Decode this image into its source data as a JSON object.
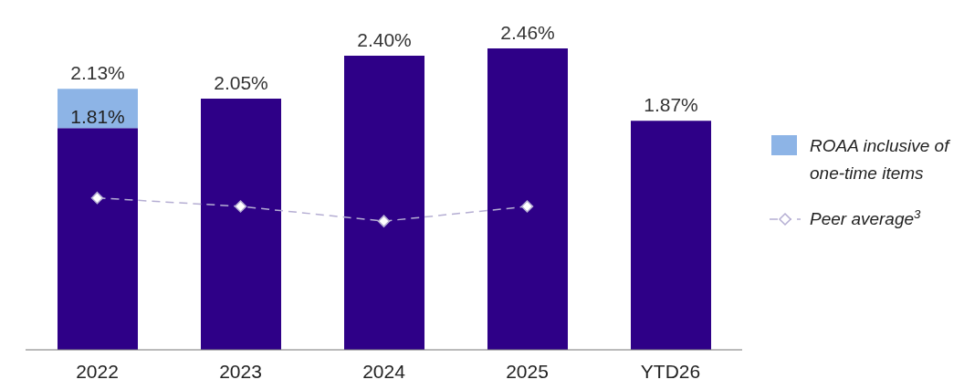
{
  "chart_data": {
    "type": "bar",
    "stacked": true,
    "categories": [
      "2022",
      "2023",
      "2024",
      "2025",
      "YTD26"
    ],
    "series": [
      {
        "color": "#2e0087",
        "values": [
          1.81,
          2.05,
          2.4,
          2.46,
          1.87
        ],
        "value_labels": [
          "1.81%",
          "2.05%",
          "2.40%",
          "2.46%",
          "1.87%"
        ]
      },
      {
        "name": "ROAA inclusive of one-time items",
        "color": "#8db4e6",
        "values": [
          0.32,
          null,
          null,
          null,
          null
        ]
      },
      {
        "name": "Peer average$^{3}$",
        "type": "line",
        "color": "#b5aed3",
        "values": [
          1.24,
          1.17,
          1.05,
          1.17,
          null
        ],
        "marker": "diamond",
        "line_style": "dashed"
      }
    ],
    "totals": [
      "2.13%",
      null,
      null,
      null,
      null
    ],
    "legend": "right"
  }
}
